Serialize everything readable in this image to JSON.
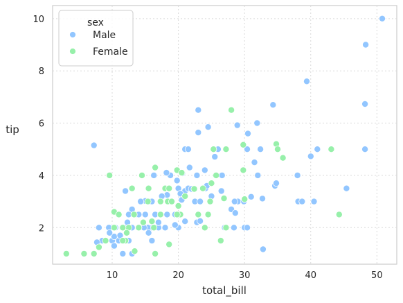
{
  "chart_data": {
    "type": "scatter",
    "title": "",
    "xlabel": "total_bill",
    "ylabel": "tip",
    "xlim": [
      1,
      53
    ],
    "ylim": [
      0.6,
      10.5
    ],
    "xticks": [
      10,
      20,
      30,
      40,
      50
    ],
    "yticks": [
      2,
      4,
      6,
      8,
      10
    ],
    "grid": true,
    "legend": {
      "title": "sex",
      "placement": "top-left"
    },
    "series": [
      {
        "name": "Male",
        "color": "#92c6ff",
        "points": [
          [
            50.8,
            10.0
          ],
          [
            48.3,
            9.0
          ],
          [
            39.4,
            7.6
          ],
          [
            48.2,
            6.73
          ],
          [
            34.3,
            6.7
          ],
          [
            23.0,
            6.5
          ],
          [
            31.9,
            6.0
          ],
          [
            24.5,
            5.85
          ],
          [
            28.9,
            5.92
          ],
          [
            30.5,
            5.6
          ],
          [
            23.0,
            5.64
          ],
          [
            7.25,
            5.15
          ],
          [
            41.0,
            5.0
          ],
          [
            40.0,
            4.73
          ],
          [
            32.4,
            5.0
          ],
          [
            30.4,
            5.0
          ],
          [
            26.0,
            5.0
          ],
          [
            21.0,
            5.0
          ],
          [
            25.5,
            4.71
          ],
          [
            21.5,
            5.0
          ],
          [
            31.5,
            4.5
          ],
          [
            24.0,
            4.2
          ],
          [
            48.2,
            5.0
          ],
          [
            21.7,
            4.3
          ],
          [
            26.6,
            4.0
          ],
          [
            32.0,
            4.0
          ],
          [
            38.0,
            4.0
          ],
          [
            22.8,
            4.0
          ],
          [
            18.8,
            4.0
          ],
          [
            18.2,
            4.1
          ],
          [
            16.3,
            4.0
          ],
          [
            20.0,
            3.5
          ],
          [
            20.6,
            4.08
          ],
          [
            19.8,
            3.8
          ],
          [
            34.6,
            3.6
          ],
          [
            29.0,
            3.0
          ],
          [
            29.9,
            3.0
          ],
          [
            38.1,
            3.0
          ],
          [
            38.7,
            3.0
          ],
          [
            40.5,
            3.0
          ],
          [
            45.4,
            3.5
          ],
          [
            34.8,
            3.7
          ],
          [
            31.0,
            3.18
          ],
          [
            32.7,
            3.11
          ],
          [
            26.5,
            3.4
          ],
          [
            21.0,
            3.4
          ],
          [
            24.1,
            3.5
          ],
          [
            18.3,
            3.25
          ],
          [
            17.3,
            3.0
          ],
          [
            15.0,
            3.02
          ],
          [
            14.3,
            3.0
          ],
          [
            15.7,
            3.0
          ],
          [
            16.0,
            3.0
          ],
          [
            13.0,
            2.7
          ],
          [
            12.0,
            3.4
          ],
          [
            22.5,
            3.0
          ],
          [
            20.3,
            3.3
          ],
          [
            23.3,
            3.0
          ],
          [
            24.3,
            3.6
          ],
          [
            21.5,
            3.5
          ],
          [
            25.0,
            3.2
          ],
          [
            28.0,
            2.7
          ],
          [
            28.5,
            3.0
          ],
          [
            22.8,
            2.2
          ],
          [
            24.0,
            2.0
          ],
          [
            30.0,
            2.0
          ],
          [
            30.4,
            2.0
          ],
          [
            28.4,
            2.0
          ],
          [
            28.6,
            2.56
          ],
          [
            27.0,
            2.0
          ],
          [
            32.8,
            1.17
          ],
          [
            23.3,
            2.25
          ],
          [
            20.0,
            2.0
          ],
          [
            21.0,
            2.24
          ],
          [
            18.0,
            2.0
          ],
          [
            17.0,
            2.0
          ],
          [
            16.0,
            2.0
          ],
          [
            15.4,
            2.0
          ],
          [
            14.8,
            2.0
          ],
          [
            14.0,
            2.0
          ],
          [
            13.0,
            2.0
          ],
          [
            12.0,
            2.0
          ],
          [
            11.5,
            2.0
          ],
          [
            10.5,
            2.0
          ],
          [
            10.0,
            2.0
          ],
          [
            9.5,
            2.0
          ],
          [
            8.0,
            2.0
          ],
          [
            13.5,
            2.5
          ],
          [
            14.0,
            2.5
          ],
          [
            12.5,
            2.5
          ],
          [
            16.5,
            2.5
          ],
          [
            18.3,
            2.5
          ],
          [
            19.5,
            2.5
          ],
          [
            11.0,
            1.5
          ],
          [
            10.0,
            1.5
          ],
          [
            9.0,
            1.5
          ],
          [
            8.5,
            1.5
          ],
          [
            7.7,
            1.44
          ],
          [
            10.3,
            1.3
          ],
          [
            10.3,
            1.66
          ],
          [
            12.5,
            1.5
          ],
          [
            13.0,
            1.0
          ],
          [
            15.5,
            1.8
          ],
          [
            16.0,
            1.5
          ],
          [
            11.6,
            1.0
          ],
          [
            17.0,
            2.2
          ],
          [
            9.6,
            1.8
          ],
          [
            19.5,
            2.1
          ],
          [
            12.3,
            2.2
          ],
          [
            11.2,
            1.7
          ],
          [
            15.0,
            2.5
          ],
          [
            17.5,
            3.2
          ],
          [
            18.5,
            3.5
          ],
          [
            22.0,
            3.48
          ],
          [
            20.5,
            3.06
          ],
          [
            24.0,
            2.0
          ]
        ]
      },
      {
        "name": "Female",
        "color": "#97f0aa",
        "points": [
          [
            3.07,
            1.0
          ],
          [
            5.75,
            1.0
          ],
          [
            7.25,
            1.0
          ],
          [
            13.4,
            1.1
          ],
          [
            16.5,
            1.0
          ],
          [
            8.0,
            1.25
          ],
          [
            12.0,
            1.5
          ],
          [
            9.6,
            4.0
          ],
          [
            10.3,
            2.6
          ],
          [
            16.5,
            4.3
          ],
          [
            14.5,
            4.0
          ],
          [
            17.3,
            3.0
          ],
          [
            15.5,
            3.5
          ],
          [
            13.0,
            3.5
          ],
          [
            19.8,
            4.2
          ],
          [
            20.5,
            4.1
          ],
          [
            25.3,
            5.0
          ],
          [
            27.2,
            5.0
          ],
          [
            28.0,
            6.5
          ],
          [
            29.8,
            5.17
          ],
          [
            34.8,
            5.2
          ],
          [
            35.0,
            5.0
          ],
          [
            35.8,
            4.67
          ],
          [
            43.1,
            5.0
          ],
          [
            44.3,
            2.5
          ],
          [
            29.8,
            4.2
          ],
          [
            25.7,
            4.0
          ],
          [
            30.0,
            3.09
          ],
          [
            26.9,
            3.12
          ],
          [
            22.4,
            3.48
          ],
          [
            24.5,
            2.5
          ],
          [
            27.2,
            2.0
          ],
          [
            26.4,
            1.5
          ],
          [
            20.3,
            2.5
          ],
          [
            20.0,
            2.83
          ],
          [
            19.8,
            2.5
          ],
          [
            18.4,
            3.0
          ],
          [
            18.6,
            1.36
          ],
          [
            17.3,
            2.5
          ],
          [
            16.3,
            2.0
          ],
          [
            16.0,
            2.24
          ],
          [
            15.4,
            3.0
          ],
          [
            14.7,
            2.2
          ],
          [
            14.0,
            2.0
          ],
          [
            13.3,
            2.5
          ],
          [
            12.5,
            2.0
          ],
          [
            12.2,
            1.8
          ],
          [
            11.6,
            2.0
          ],
          [
            11.0,
            2.5
          ],
          [
            10.3,
            2.0
          ],
          [
            11.6,
            1.5
          ],
          [
            9.0,
            1.5
          ],
          [
            18.0,
            3.5
          ],
          [
            18.6,
            3.5
          ],
          [
            19.0,
            3.0
          ],
          [
            21.0,
            3.2
          ],
          [
            22.4,
            3.48
          ],
          [
            23.7,
            3.5
          ],
          [
            23.0,
            2.5
          ],
          [
            24.0,
            2.0
          ],
          [
            24.8,
            3.0
          ],
          [
            25.0,
            3.7
          ]
        ]
      }
    ]
  }
}
